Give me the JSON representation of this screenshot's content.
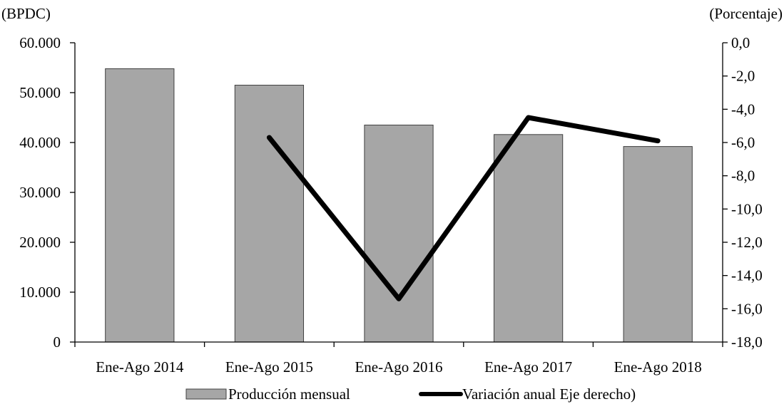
{
  "chart_data": {
    "type": "bar",
    "categories": [
      "Ene-Ago 2014",
      "Ene-Ago 2015",
      "Ene-Ago 2016",
      "Ene-Ago 2017",
      "Ene-Ago 2018"
    ],
    "series": [
      {
        "name": "Producción mensual",
        "type": "bar",
        "axis": "left",
        "color": "#a6a6a6",
        "values": [
          54800,
          51500,
          43500,
          41600,
          39200
        ]
      },
      {
        "name": "Variación anual Eje derecho)",
        "type": "line",
        "axis": "right",
        "color": "#000000",
        "values": [
          null,
          -5.7,
          -15.4,
          -4.5,
          -5.9
        ]
      }
    ],
    "left_axis": {
      "unit_label": "(BPDC)",
      "range": [
        0,
        60000
      ],
      "ticks": [
        0,
        10000,
        20000,
        30000,
        40000,
        50000,
        60000
      ],
      "tick_labels": [
        "0",
        "10.000",
        "20.000",
        "30.000",
        "40.000",
        "50.000",
        "60.000"
      ]
    },
    "right_axis": {
      "unit_label": "(Porcentaje)",
      "range": [
        -18,
        0
      ],
      "ticks": [
        0,
        -2,
        -4,
        -6,
        -8,
        -10,
        -12,
        -14,
        -16,
        -18
      ],
      "tick_labels": [
        "0,0",
        "-2,0",
        "-4,0",
        "-6,0",
        "-8,0",
        "-10,0",
        "-12,0",
        "-14,0",
        "-16,0",
        "-18,0"
      ]
    },
    "grid": false,
    "legend_position": "bottom"
  }
}
